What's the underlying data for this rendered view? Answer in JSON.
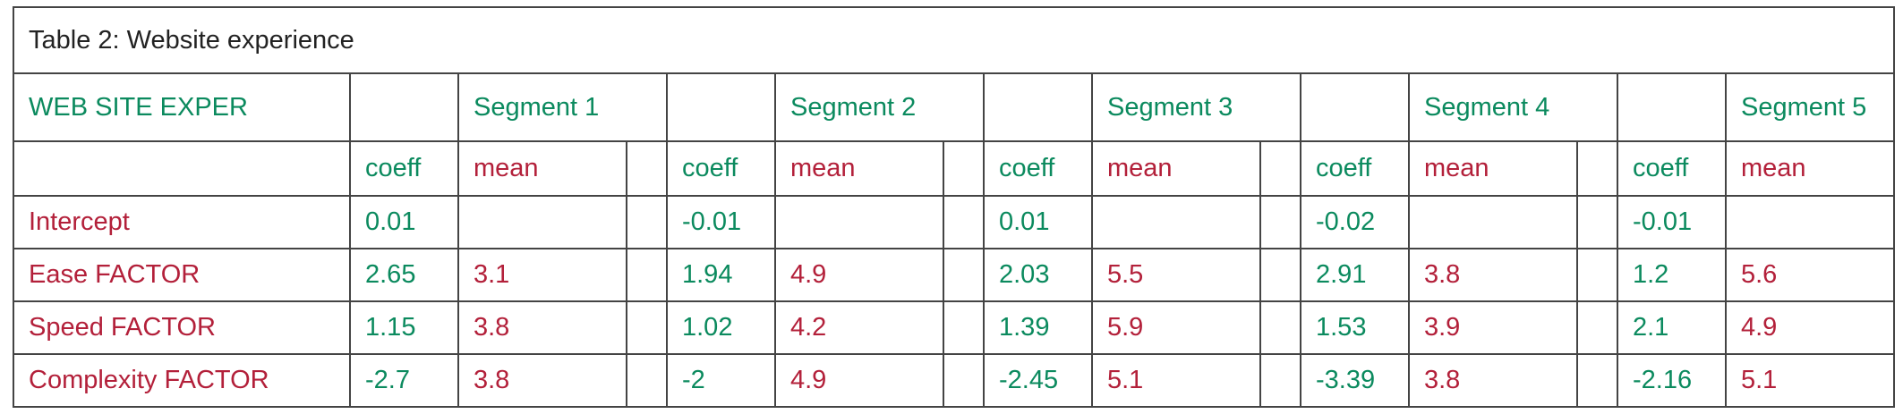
{
  "table": {
    "title": "Table 2: Website experience",
    "label_header": "WEB SITE EXPER",
    "segments": [
      "Segment 1",
      "Segment 2",
      "Segment 3",
      "Segment 4",
      "Segment 5"
    ],
    "subheaders": [
      "coeff",
      "mean"
    ],
    "rows": [
      {
        "label": "Intercept",
        "cells": [
          [
            0.01,
            null
          ],
          [
            -0.01,
            null
          ],
          [
            0.01,
            null
          ],
          [
            -0.02,
            null
          ],
          [
            -0.01,
            null
          ]
        ]
      },
      {
        "label": "Ease FACTOR",
        "cells": [
          [
            2.65,
            3.1
          ],
          [
            1.94,
            4.9
          ],
          [
            2.03,
            5.5
          ],
          [
            2.91,
            3.8
          ],
          [
            1.2,
            5.6
          ]
        ]
      },
      {
        "label": "Speed FACTOR",
        "cells": [
          [
            1.15,
            3.8
          ],
          [
            1.02,
            4.2
          ],
          [
            1.39,
            5.9
          ],
          [
            1.53,
            3.9
          ],
          [
            2.1,
            4.9
          ]
        ]
      },
      {
        "label": "Complexity FACTOR",
        "cells": [
          [
            -2.7,
            3.8
          ],
          [
            -2,
            4.9
          ],
          [
            -2.45,
            5.1
          ],
          [
            -3.39,
            3.8
          ],
          [
            -2.16,
            5.1
          ]
        ]
      }
    ]
  }
}
